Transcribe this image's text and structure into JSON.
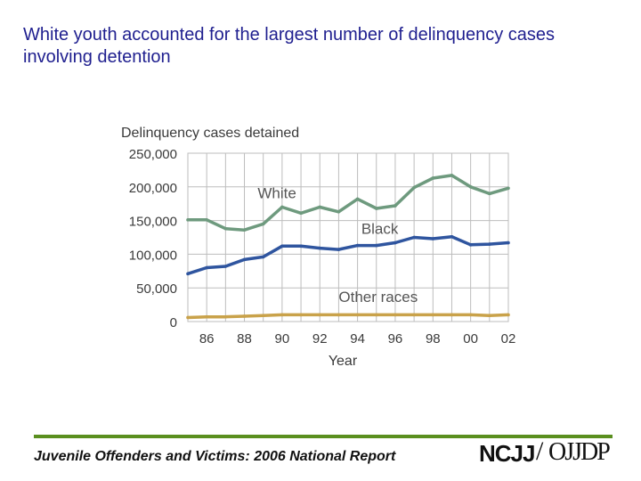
{
  "header": {
    "title": "White youth accounted for the largest number of delinquency cases involving detention"
  },
  "footer": {
    "text": "Juvenile Offenders and Victims: 2006 National Report",
    "logo_left": "NCJJ",
    "logo_slash": "/",
    "logo_right": "OJJDP"
  },
  "colors": {
    "title": "#1f1f8f",
    "rule": "#5a8f1f",
    "white": "#6e9a7e",
    "black": "#2f559f",
    "other": "#c9a24a",
    "grid": "#bdbdbd"
  },
  "chart_data": {
    "type": "line",
    "title": "",
    "ylabel": "Delinquency cases detained",
    "xlabel": "Year",
    "ylim": [
      0,
      250000
    ],
    "yticks": [
      0,
      50000,
      100000,
      150000,
      200000,
      250000
    ],
    "ytick_labels": [
      "0",
      "50,000",
      "100,000",
      "150,000",
      "200,000",
      "250,000"
    ],
    "xlim": [
      1985,
      2002
    ],
    "xticks": [
      1986,
      1988,
      1990,
      1992,
      1994,
      1996,
      1998,
      2000,
      2002
    ],
    "xtick_labels": [
      "86",
      "88",
      "90",
      "92",
      "94",
      "96",
      "98",
      "00",
      "02"
    ],
    "grid": true,
    "x": [
      1985,
      1986,
      1987,
      1988,
      1989,
      1990,
      1991,
      1992,
      1993,
      1994,
      1995,
      1996,
      1997,
      1998,
      1999,
      2000,
      2001,
      2002
    ],
    "series": [
      {
        "name": "White",
        "color_key": "white",
        "values": [
          151000,
          151000,
          138000,
          136000,
          145000,
          170000,
          161000,
          170000,
          163000,
          182000,
          168000,
          172000,
          199000,
          213000,
          217000,
          200000,
          190000,
          198000
        ]
      },
      {
        "name": "Black",
        "color_key": "black",
        "values": [
          71000,
          80000,
          82000,
          92000,
          96000,
          112000,
          112000,
          109000,
          107000,
          113000,
          113000,
          117000,
          125000,
          123000,
          126000,
          114000,
          115000,
          117000
        ]
      },
      {
        "name": "Other races",
        "color_key": "other",
        "values": [
          6000,
          7000,
          7000,
          8000,
          9000,
          10000,
          10000,
          10000,
          10000,
          10000,
          10000,
          10000,
          10000,
          10000,
          10000,
          10000,
          9000,
          10000
        ]
      }
    ],
    "annotations": [
      {
        "text": "White",
        "x": 1988.7,
        "y": 183000
      },
      {
        "text": "Black",
        "x": 1994.2,
        "y": 130000
      },
      {
        "text": "Other races",
        "x": 1993.0,
        "y": 29000
      }
    ]
  }
}
